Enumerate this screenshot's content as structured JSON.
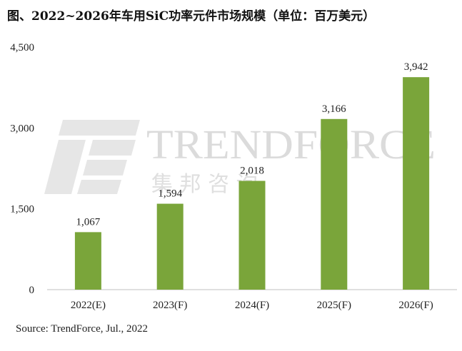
{
  "chart_data": {
    "type": "bar",
    "title": "图、2022~2026年车用SiC功率元件市场规模（单位：百万美元）",
    "categories": [
      "2022(E)",
      "2023(F)",
      "2024(F)",
      "2025(F)",
      "2026(F)"
    ],
    "values": [
      1067,
      1594,
      2018,
      3166,
      3942
    ],
    "value_labels": [
      "1,067",
      "1,594",
      "2,018",
      "3,166",
      "3,942"
    ],
    "ylim": [
      0,
      4500
    ],
    "yticks": [
      0,
      1500,
      3000,
      4500
    ],
    "ytick_labels": [
      "0",
      "1,500",
      "3,000",
      "4,500"
    ],
    "xlabel": "",
    "ylabel": "",
    "bar_color": "#7aa53a",
    "grid": false,
    "legend": "none",
    "source": "Source: TrendForce, Jul., 2022"
  },
  "watermark": {
    "brand": "TRENDFORCE",
    "sub": "集 邦 咨 询"
  }
}
